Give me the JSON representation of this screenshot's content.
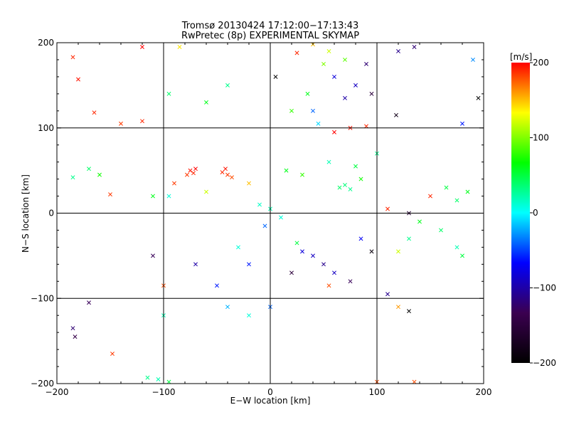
{
  "chart_data": {
    "type": "scatter",
    "title": "Tromsø 20130424 17:12:00−17:13:43",
    "subtitle": "RwPretec (8p) EXPERIMENTAL SKYMAP",
    "xlabel": "E−W location [km]",
    "ylabel": "N−S location [km]",
    "xlim": [
      -200,
      200
    ],
    "ylim": [
      -200,
      200
    ],
    "xticks": [
      "−200",
      "−100",
      "0",
      "100",
      "200"
    ],
    "yticks": [
      "−200",
      "−100",
      "0",
      "100",
      "200"
    ],
    "grid": true,
    "colorbar": {
      "label": "[m/s]",
      "range": [
        -200,
        200
      ],
      "ticks": [
        "−200",
        "−100",
        "0",
        "100",
        "200"
      ],
      "colormap": [
        "#000000",
        "#3b0050",
        "#0000ff",
        "#00ffff",
        "#00ff00",
        "#ffff00",
        "#ff0000"
      ]
    },
    "marker_types": [
      "x",
      "dot"
    ],
    "series": [
      {
        "values": [
          {
            "x": -75,
            "y": 50,
            "v": 195,
            "m": "x"
          },
          {
            "x": -72,
            "y": 47,
            "v": 190,
            "m": "x"
          },
          {
            "x": -78,
            "y": 45,
            "v": 185,
            "m": "x"
          },
          {
            "x": -70,
            "y": 52,
            "v": 200,
            "m": "x"
          },
          {
            "x": -45,
            "y": 48,
            "v": 190,
            "m": "x"
          },
          {
            "x": -40,
            "y": 45,
            "v": 185,
            "m": "x"
          },
          {
            "x": -42,
            "y": 52,
            "v": 195,
            "m": "x"
          },
          {
            "x": -36,
            "y": 42,
            "v": 180,
            "m": "x"
          },
          {
            "x": -185,
            "y": 183,
            "v": 190,
            "m": "x"
          },
          {
            "x": -180,
            "y": 157,
            "v": 195,
            "m": "x"
          },
          {
            "x": -165,
            "y": 118,
            "v": 190,
            "m": "x"
          },
          {
            "x": -140,
            "y": 105,
            "v": 185,
            "m": "x"
          },
          {
            "x": -120,
            "y": 108,
            "v": 190,
            "m": "x"
          },
          {
            "x": -160,
            "y": 45,
            "v": 70,
            "m": "x"
          },
          {
            "x": -170,
            "y": 52,
            "v": 40,
            "m": "x"
          },
          {
            "x": -185,
            "y": 42,
            "v": 30,
            "m": "x"
          },
          {
            "x": -150,
            "y": 22,
            "v": 185,
            "m": "x"
          },
          {
            "x": -110,
            "y": 20,
            "v": 60,
            "m": "x"
          },
          {
            "x": 40,
            "y": 198,
            "v": 150,
            "m": "x"
          },
          {
            "x": 55,
            "y": 190,
            "v": 120,
            "m": "x"
          },
          {
            "x": 50,
            "y": 175,
            "v": 100,
            "m": "x"
          },
          {
            "x": 70,
            "y": 180,
            "v": 90,
            "m": "x"
          },
          {
            "x": 90,
            "y": 175,
            "v": -120,
            "m": "x"
          },
          {
            "x": 80,
            "y": 150,
            "v": -90,
            "m": "x"
          },
          {
            "x": 95,
            "y": 140,
            "v": -150,
            "m": "x"
          },
          {
            "x": 70,
            "y": 135,
            "v": -100,
            "m": "x"
          },
          {
            "x": 60,
            "y": 160,
            "v": -80,
            "m": "x"
          },
          {
            "x": 5,
            "y": 160,
            "v": -200,
            "m": "x"
          },
          {
            "x": 120,
            "y": 190,
            "v": -110,
            "m": "x"
          },
          {
            "x": 135,
            "y": 195,
            "v": -120,
            "m": "x"
          },
          {
            "x": 118,
            "y": 115,
            "v": -180,
            "m": "x"
          },
          {
            "x": 195,
            "y": 135,
            "v": -200,
            "m": "x"
          },
          {
            "x": 190,
            "y": 180,
            "v": -30,
            "m": "x"
          },
          {
            "x": 180,
            "y": 105,
            "v": -60,
            "m": "x"
          },
          {
            "x": 60,
            "y": 95,
            "v": 200,
            "m": "x"
          },
          {
            "x": 75,
            "y": 100,
            "v": 195,
            "m": "x"
          },
          {
            "x": 90,
            "y": 102,
            "v": 190,
            "m": "x"
          },
          {
            "x": 65,
            "y": 30,
            "v": 40,
            "m": "x"
          },
          {
            "x": 70,
            "y": 33,
            "v": 35,
            "m": "x"
          },
          {
            "x": 75,
            "y": 28,
            "v": 30,
            "m": "x"
          },
          {
            "x": 15,
            "y": 50,
            "v": 60,
            "m": "x"
          },
          {
            "x": 30,
            "y": 45,
            "v": 80,
            "m": "x"
          },
          {
            "x": 0,
            "y": 5,
            "v": 20,
            "m": "x"
          },
          {
            "x": -10,
            "y": 10,
            "v": 15,
            "m": "x"
          },
          {
            "x": 10,
            "y": -5,
            "v": 10,
            "m": "x"
          },
          {
            "x": -5,
            "y": -15,
            "v": -40,
            "m": "x"
          },
          {
            "x": 25,
            "y": -35,
            "v": 50,
            "m": "x"
          },
          {
            "x": 30,
            "y": -45,
            "v": -80,
            "m": "x"
          },
          {
            "x": 50,
            "y": -60,
            "v": -110,
            "m": "x"
          },
          {
            "x": 60,
            "y": -70,
            "v": -90,
            "m": "x"
          },
          {
            "x": 75,
            "y": -80,
            "v": -130,
            "m": "x"
          },
          {
            "x": 55,
            "y": -85,
            "v": 180,
            "m": "x"
          },
          {
            "x": 85,
            "y": -30,
            "v": -70,
            "m": "x"
          },
          {
            "x": 95,
            "y": -45,
            "v": -190,
            "m": "x"
          },
          {
            "x": 130,
            "y": -30,
            "v": 30,
            "m": "x"
          },
          {
            "x": 140,
            "y": -10,
            "v": 60,
            "m": "x"
          },
          {
            "x": 160,
            "y": -20,
            "v": 40,
            "m": "x"
          },
          {
            "x": 175,
            "y": -40,
            "v": 20,
            "m": "x"
          },
          {
            "x": 180,
            "y": -50,
            "v": 50,
            "m": "x"
          },
          {
            "x": 120,
            "y": -45,
            "v": 120,
            "m": "x"
          },
          {
            "x": 150,
            "y": 20,
            "v": 190,
            "m": "x"
          },
          {
            "x": 175,
            "y": 15,
            "v": 40,
            "m": "x"
          },
          {
            "x": 165,
            "y": 30,
            "v": 50,
            "m": "x"
          },
          {
            "x": 185,
            "y": 25,
            "v": 60,
            "m": "x"
          },
          {
            "x": 110,
            "y": 5,
            "v": 190,
            "m": "x"
          },
          {
            "x": 130,
            "y": 0,
            "v": -160,
            "m": "x"
          },
          {
            "x": 110,
            "y": -95,
            "v": -110,
            "m": "x"
          },
          {
            "x": 120,
            "y": -110,
            "v": 160,
            "m": "x"
          },
          {
            "x": 130,
            "y": -115,
            "v": -200,
            "m": "x"
          },
          {
            "x": -100,
            "y": -85,
            "v": 180,
            "m": "x"
          },
          {
            "x": -110,
            "y": -50,
            "v": -130,
            "m": "x"
          },
          {
            "x": -100,
            "y": -120,
            "v": 20,
            "m": "x"
          },
          {
            "x": -170,
            "y": -105,
            "v": -130,
            "m": "x"
          },
          {
            "x": -185,
            "y": -135,
            "v": -120,
            "m": "x"
          },
          {
            "x": -183,
            "y": -145,
            "v": -140,
            "m": "x"
          },
          {
            "x": -148,
            "y": -165,
            "v": 185,
            "m": "x"
          },
          {
            "x": -115,
            "y": -193,
            "v": 30,
            "m": "x"
          },
          {
            "x": -105,
            "y": -195,
            "v": 20,
            "m": "x"
          },
          {
            "x": -95,
            "y": -198,
            "v": 50,
            "m": "x"
          },
          {
            "x": 100,
            "y": -198,
            "v": 180,
            "m": "x"
          },
          {
            "x": 135,
            "y": -198,
            "v": 180,
            "m": "x"
          },
          {
            "x": -70,
            "y": -60,
            "v": -100,
            "m": "x"
          },
          {
            "x": -50,
            "y": -85,
            "v": -60,
            "m": "x"
          },
          {
            "x": -40,
            "y": -110,
            "v": -20,
            "m": "x"
          },
          {
            "x": -20,
            "y": -120,
            "v": 10,
            "m": "x"
          },
          {
            "x": 0,
            "y": -110,
            "v": -40,
            "m": "x"
          },
          {
            "x": 20,
            "y": -70,
            "v": -150,
            "m": "x"
          },
          {
            "x": 40,
            "y": -50,
            "v": -90,
            "m": "x"
          },
          {
            "x": -30,
            "y": -40,
            "v": 10,
            "m": "x"
          },
          {
            "x": -20,
            "y": -60,
            "v": -60,
            "m": "x"
          },
          {
            "x": -60,
            "y": 25,
            "v": 120,
            "m": "x"
          },
          {
            "x": -90,
            "y": 35,
            "v": 185,
            "m": "x"
          },
          {
            "x": -95,
            "y": 20,
            "v": 10,
            "m": "x"
          },
          {
            "x": -20,
            "y": 35,
            "v": 150,
            "m": "x"
          },
          {
            "x": 20,
            "y": 120,
            "v": 80,
            "m": "x"
          },
          {
            "x": 35,
            "y": 140,
            "v": 60,
            "m": "x"
          },
          {
            "x": 40,
            "y": 120,
            "v": -40,
            "m": "x"
          },
          {
            "x": 45,
            "y": 105,
            "v": -10,
            "m": "x"
          },
          {
            "x": 55,
            "y": 60,
            "v": 20,
            "m": "x"
          },
          {
            "x": 80,
            "y": 55,
            "v": 50,
            "m": "x"
          },
          {
            "x": 85,
            "y": 40,
            "v": 70,
            "m": "x"
          },
          {
            "x": 100,
            "y": 70,
            "v": 30,
            "m": "x"
          },
          {
            "x": -120,
            "y": 195,
            "v": 200,
            "m": "x"
          },
          {
            "x": -85,
            "y": 195,
            "v": 140,
            "m": "x"
          },
          {
            "x": 25,
            "y": 188,
            "v": 190,
            "m": "x"
          },
          {
            "x": -60,
            "y": 130,
            "v": 60,
            "m": "x"
          },
          {
            "x": -95,
            "y": 140,
            "v": 40,
            "m": "x"
          },
          {
            "x": -40,
            "y": 150,
            "v": 30,
            "m": "x"
          }
        ]
      }
    ]
  }
}
